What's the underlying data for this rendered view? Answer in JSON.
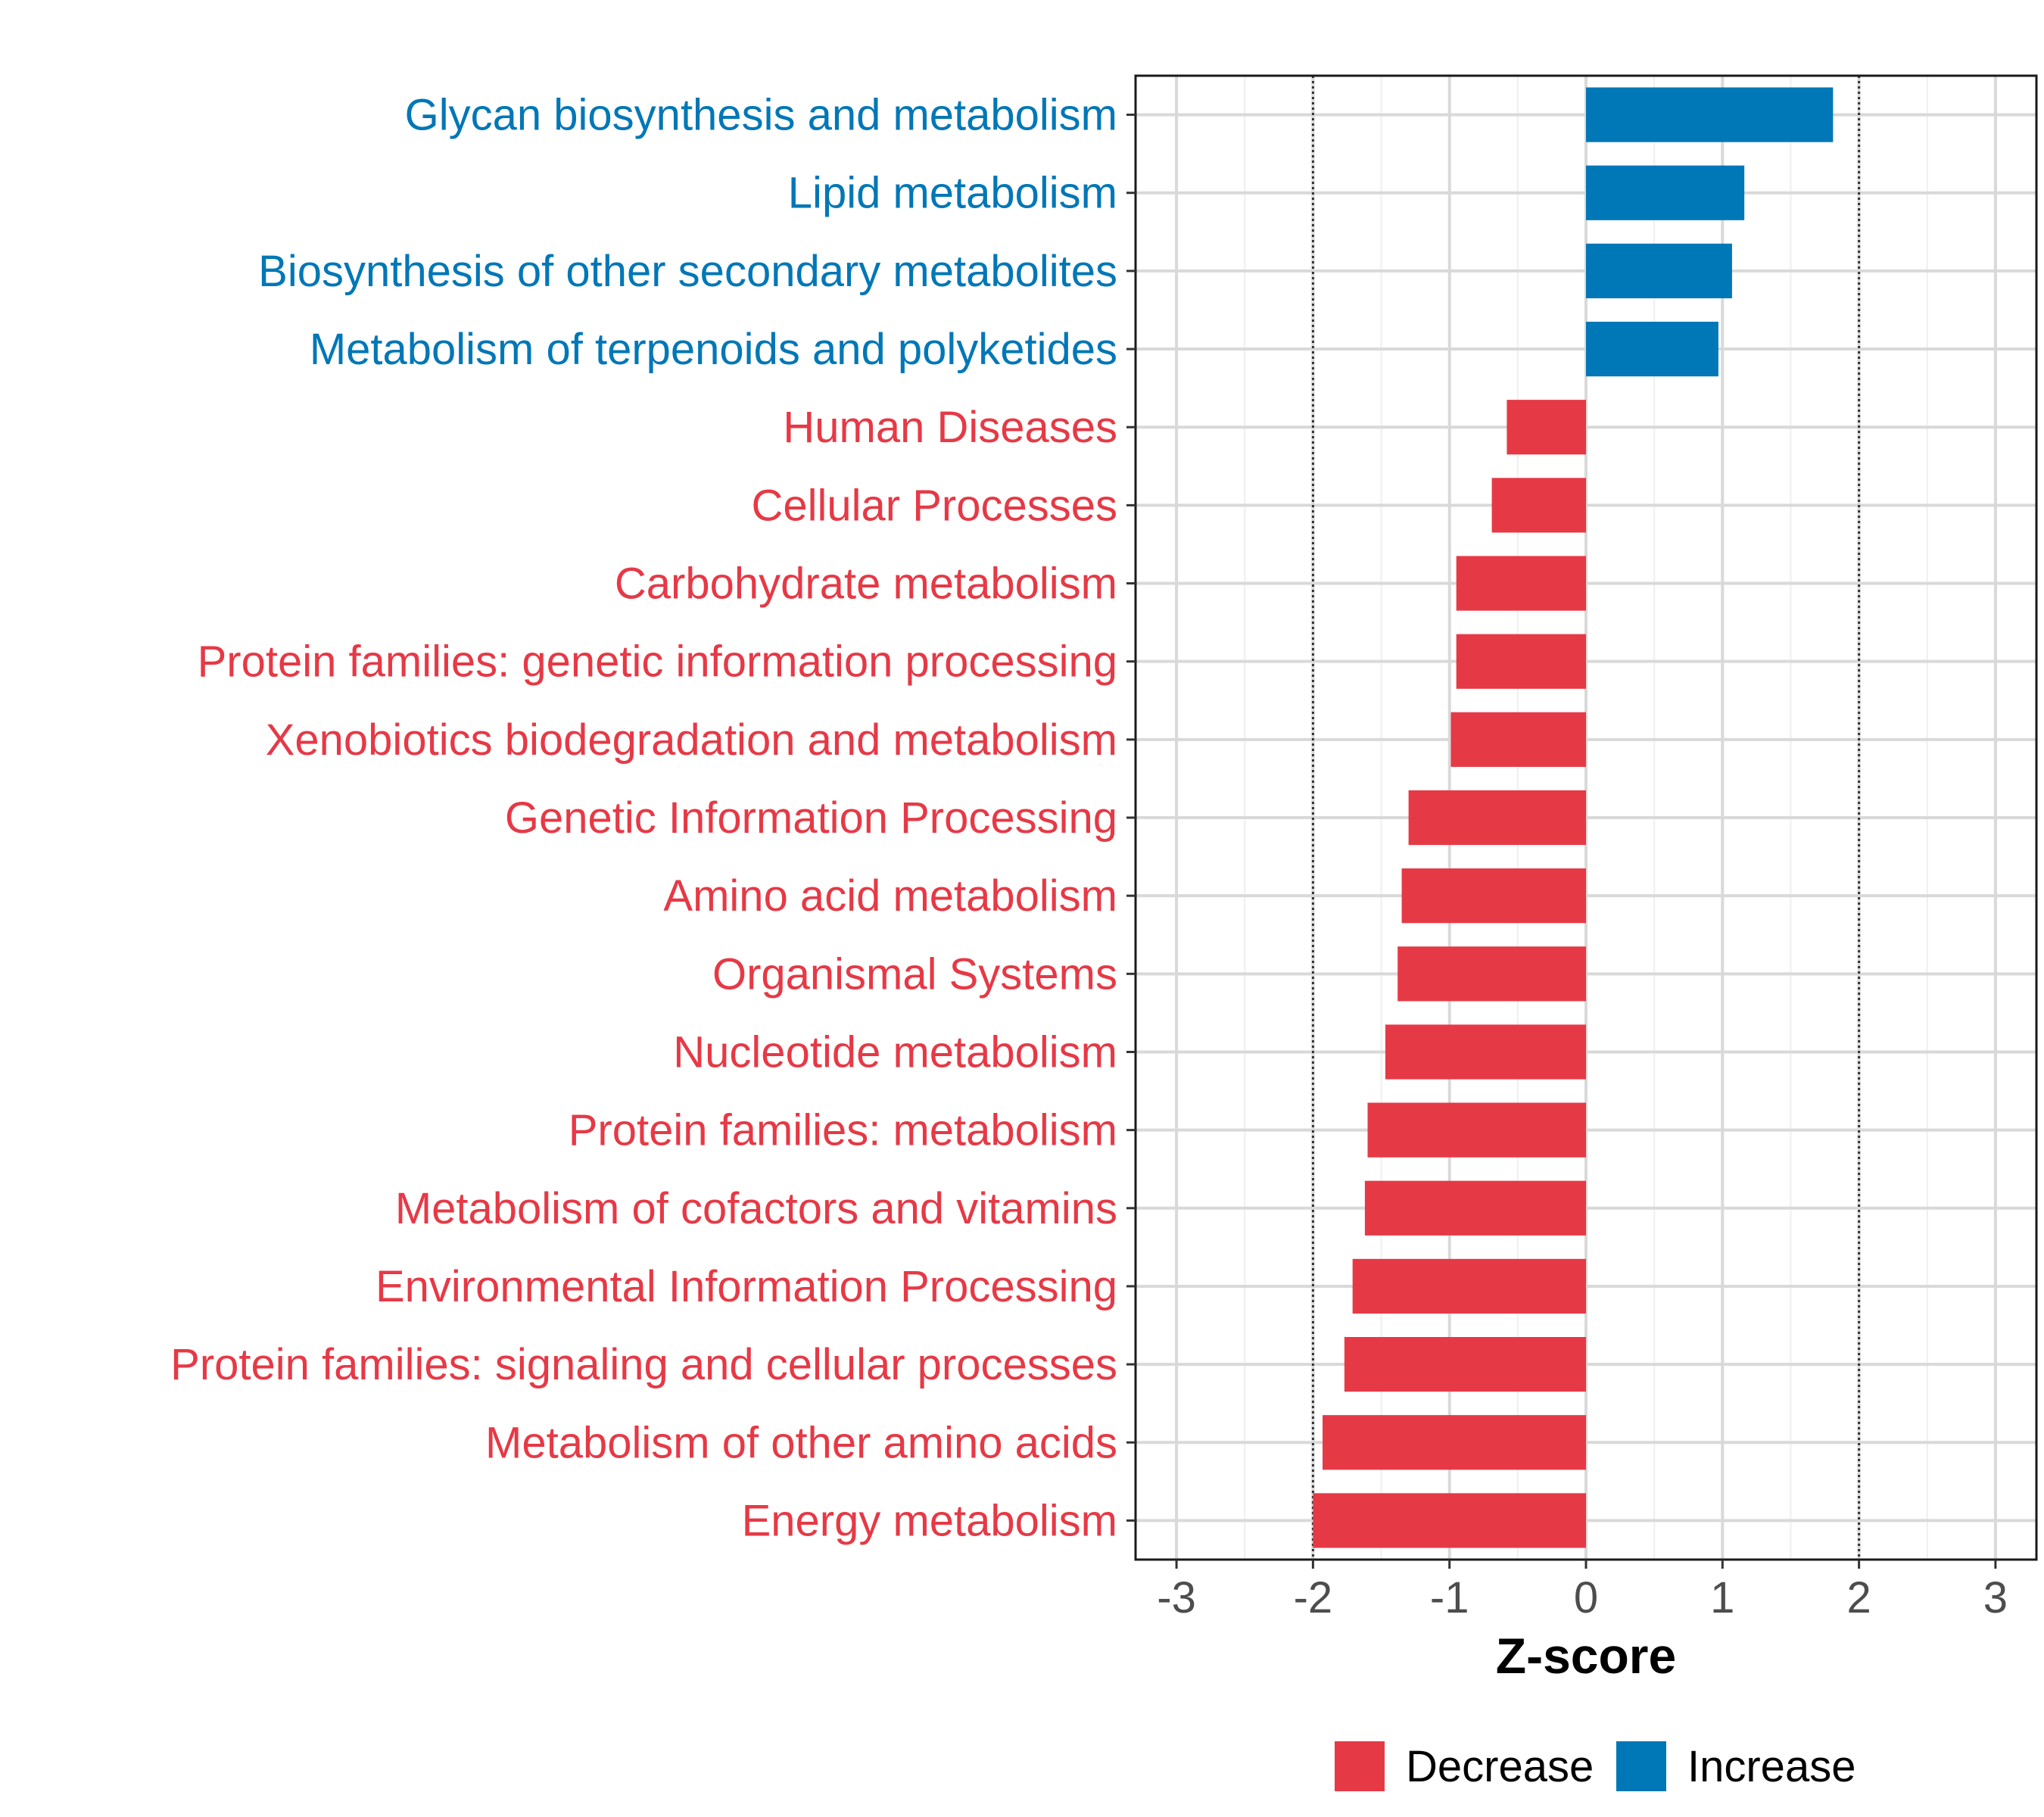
{
  "chart_data": {
    "type": "bar",
    "orientation": "horizontal",
    "categories": [
      "Glycan biosynthesis and metabolism",
      "Lipid metabolism",
      "Biosynthesis of other secondary metabolites",
      "Metabolism of terpenoids and polyketides",
      "Human Diseases",
      "Cellular Processes",
      "Carbohydrate metabolism",
      "Protein families: genetic information processing",
      "Xenobiotics biodegradation and metabolism",
      "Genetic Information Processing",
      "Amino acid metabolism",
      "Organismal Systems",
      "Nucleotide metabolism",
      "Protein families: metabolism",
      "Metabolism of cofactors and vitamins",
      "Environmental Information Processing",
      "Protein families: signaling and cellular processes",
      "Metabolism of other amino acids",
      "Energy metabolism"
    ],
    "values": [
      1.81,
      1.16,
      1.07,
      0.97,
      -0.58,
      -0.69,
      -0.95,
      -0.95,
      -0.99,
      -1.3,
      -1.35,
      -1.38,
      -1.47,
      -1.6,
      -1.62,
      -1.71,
      -1.77,
      -1.93,
      -2.0
    ],
    "groups": [
      "Increase",
      "Increase",
      "Increase",
      "Increase",
      "Decrease",
      "Decrease",
      "Decrease",
      "Decrease",
      "Decrease",
      "Decrease",
      "Decrease",
      "Decrease",
      "Decrease",
      "Decrease",
      "Decrease",
      "Decrease",
      "Decrease",
      "Decrease",
      "Decrease"
    ],
    "xlabel": "Z-score",
    "ylabel": "",
    "title": "",
    "xlim": [
      -3.3,
      3.3
    ],
    "xticks": [
      -3,
      -2,
      -1,
      0,
      1,
      2,
      3
    ],
    "xtick_labels": [
      "-3",
      "-2",
      "-1",
      "0",
      "1",
      "2",
      "3"
    ],
    "reference_lines": [
      -2,
      2
    ],
    "grid": true,
    "legend_position": "bottom",
    "legend": [
      {
        "name": "Decrease",
        "color": "#e63946"
      },
      {
        "name": "Increase",
        "color": "#0077b6"
      }
    ],
    "colors": {
      "Decrease": "#e63946",
      "Increase": "#0077b6"
    }
  }
}
